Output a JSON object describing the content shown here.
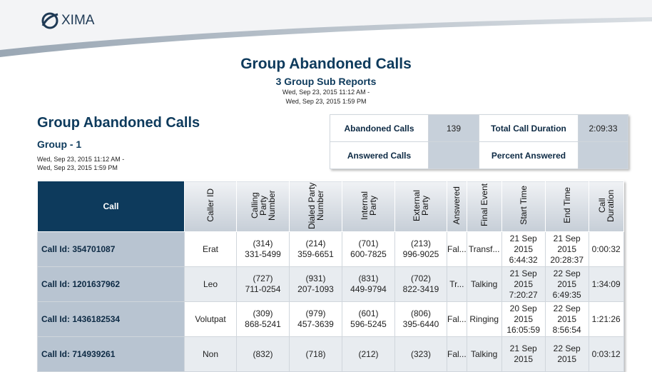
{
  "header": {
    "logo": "XIMA"
  },
  "report": {
    "title": "Group Abandoned Calls",
    "subtitle": "3 Group Sub Reports",
    "range": [
      "Wed, Sep 23, 2015 11:12 AM -",
      "Wed, Sep 23, 2015 1:59 PM"
    ]
  },
  "section": {
    "title": "Group Abandoned Calls",
    "group": "Group - 1",
    "range": [
      "Wed, Sep 23, 2015 11:12 AM -",
      "Wed, Sep 23, 2015 1:59 PM"
    ]
  },
  "summary": [
    [
      {
        "label": "Abandoned Calls",
        "value": "139"
      },
      {
        "label": "Total Call Duration",
        "value": "2:09:33"
      }
    ],
    [
      {
        "label": "Answered Calls"
      },
      {
        "label": "Percent Answered"
      }
    ]
  ],
  "table": {
    "headers": [
      "Call",
      "Caller ID",
      "Calling Party Number",
      "Dialed Party Number",
      "Internal Party",
      "External Party",
      "Answered",
      "Final Event",
      "Start Time",
      "End Time",
      "Call Duration"
    ],
    "rows": [
      [
        "Call Id: 354701087",
        "Erat",
        "(314)\n331-5499",
        "(214)\n359-6651",
        "(701)\n600-7825",
        "(213)\n996-9025",
        "Fal...",
        "Transf...",
        "21 Sep\n2015\n6:44:32",
        "21 Sep\n2015\n20:28:37",
        "0:00:32"
      ],
      [
        "Call Id: 1201637962",
        "Leo",
        "(727)\n711-0254",
        "(931)\n207-1093",
        "(831)\n449-9794",
        "(702)\n822-3419",
        "Tr...",
        "Talking",
        "21 Sep\n2015\n7:20:27",
        "22 Sep\n2015\n6:49:35",
        "1:34:09"
      ],
      [
        "Call Id: 1436182534",
        "Volutpat",
        "(309)\n868-5241",
        "(979)\n457-3639",
        "(601)\n596-5245",
        "(806)\n395-6440",
        "Fal...",
        "Ringing",
        "20 Sep\n2015\n16:05:59",
        "22 Sep\n2015\n8:56:54",
        "1:21:26"
      ],
      [
        "Call Id: 714939261",
        "Non",
        "(832)",
        "(718)",
        "(212)",
        "(323)",
        "Fal...",
        "Talking",
        "21 Sep\n2015",
        "22 Sep\n2015",
        "0:03:12"
      ]
    ]
  }
}
